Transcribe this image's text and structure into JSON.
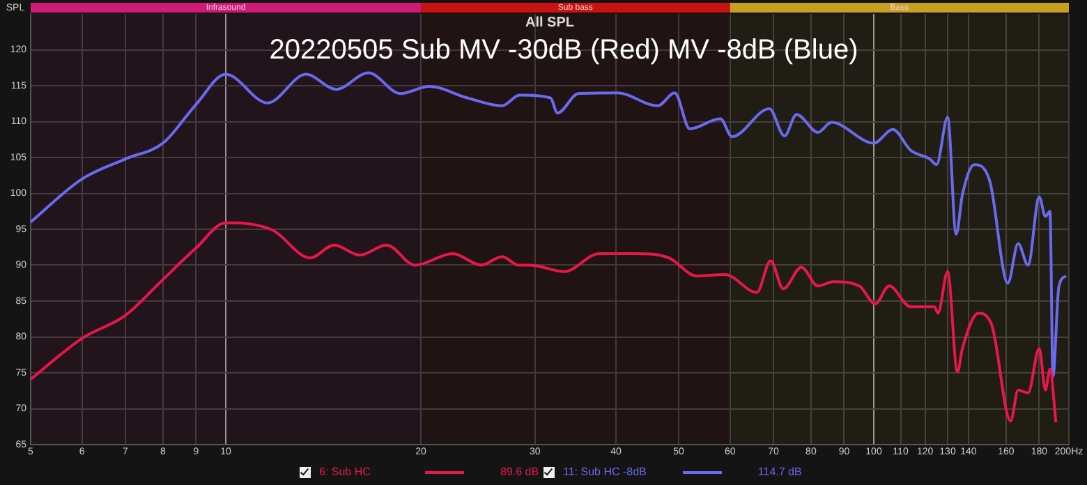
{
  "chart_data": {
    "type": "line",
    "title": "All SPL",
    "subtitle": "20220505 Sub MV -30dB (Red) MV -8dB (Blue)",
    "ylabel": "SPL",
    "log": "x",
    "grid": true,
    "legend": "bottom",
    "marker": "none",
    "line_style": "solid",
    "xlim": [
      5,
      200
    ],
    "xticks": [
      5,
      6,
      7,
      8,
      9,
      10,
      20,
      30,
      40,
      50,
      60,
      70,
      80,
      90,
      100,
      110,
      120,
      130,
      140,
      160,
      180,
      {
        "value": 200,
        "label": "200Hz"
      }
    ],
    "ylim": [
      65,
      125
    ],
    "yticks": [
      65,
      70,
      75,
      80,
      85,
      90,
      95,
      100,
      105,
      110,
      115,
      120
    ],
    "bands": [
      {
        "axis": "x",
        "from": 5,
        "to": 20,
        "label": "Infrasound",
        "color": "#d01a7a"
      },
      {
        "axis": "x",
        "from": 20,
        "to": 60,
        "label": "Sub bass",
        "color": "#cc1111"
      },
      {
        "axis": "x",
        "from": 60,
        "to": 200,
        "label": "Bass",
        "color": "#c8a020"
      }
    ],
    "annotations": [
      "89.6 dB",
      "114.7 dB"
    ],
    "series": [
      {
        "name": "6: Sub HC",
        "color": "#e8174a",
        "x": [
          5,
          6,
          7,
          8,
          9,
          10,
          11.8,
          13.5,
          14.7,
          16.1,
          17.7,
          19.6,
          22.4,
          24.8,
          26.7,
          28.3,
          29.5,
          33.3,
          37.7,
          43,
          48.3,
          53.3,
          58.9,
          66,
          69.3,
          72.5,
          77.3,
          82,
          86.6,
          95,
          100.5,
          105.6,
          114,
          124,
          125.6,
          130,
          134.6,
          137,
          145,
          152,
          162.6,
          167,
          173,
          180,
          184,
          187,
          191
        ],
        "values": [
          74.1,
          79.8,
          83,
          88,
          92.4,
          95.9,
          94.9,
          91,
          92.8,
          91.4,
          92.8,
          90,
          91.6,
          90,
          91.2,
          90,
          90,
          89.1,
          91.6,
          91.6,
          91,
          88.5,
          88.7,
          86.2,
          90.6,
          86.7,
          89.7,
          87.1,
          87.7,
          87.1,
          84.6,
          87.1,
          84.2,
          84.2,
          83.3,
          89.1,
          75.1,
          78.4,
          83.3,
          81.7,
          68.3,
          72.6,
          72.2,
          78.4,
          72.6,
          75.5,
          68.1
        ]
      },
      {
        "name": "11: Sub HC -8dB",
        "color": "#6a6af0",
        "x": [
          5,
          6,
          7,
          8,
          9,
          10,
          11.6,
          13.3,
          14.8,
          16.6,
          18.6,
          20.6,
          23.6,
          26.7,
          28.4,
          31.7,
          32.5,
          35,
          40.2,
          46.4,
          49.3,
          52,
          58,
          60.4,
          69,
          72.8,
          76,
          82,
          86,
          100,
          107,
          114,
          122,
          125,
          130,
          134,
          137,
          143,
          151,
          161,
          167,
          173,
          180,
          184,
          187,
          189,
          193,
          198
        ],
        "values": [
          96,
          102,
          104.8,
          107,
          112.4,
          116.6,
          112.6,
          116.6,
          114.5,
          116.8,
          113.9,
          114.9,
          113.3,
          112.2,
          113.7,
          113.3,
          111.2,
          113.9,
          114,
          112.2,
          114,
          109,
          110.4,
          107.9,
          111.8,
          108,
          111,
          108.5,
          109.9,
          107,
          108.9,
          106,
          104.8,
          104,
          110.6,
          94.3,
          99.8,
          104,
          101.7,
          87.5,
          93,
          90,
          99.5,
          96.8,
          97.5,
          74.5,
          87,
          88.5
        ]
      }
    ]
  }
}
